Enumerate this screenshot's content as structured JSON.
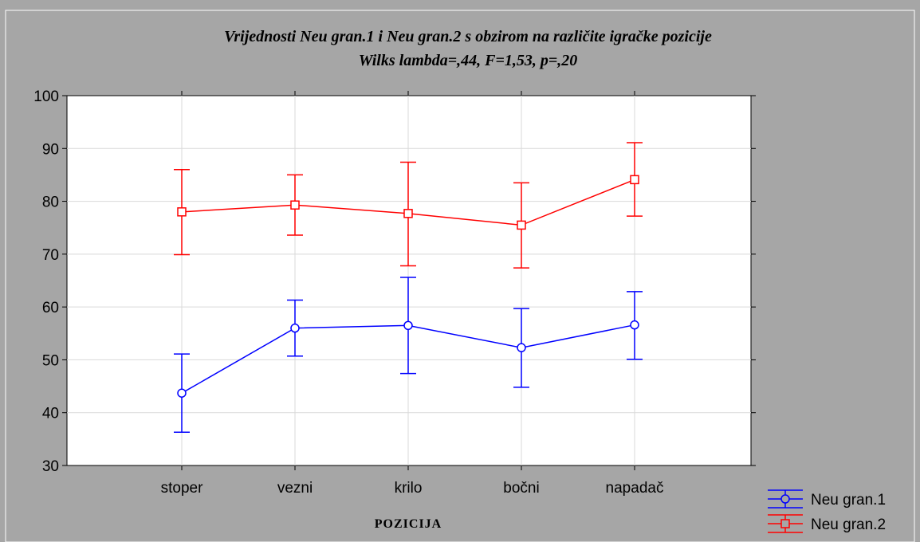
{
  "chart_data": {
    "type": "line",
    "title": "Vrijednosti Neu gran.1 i Neu gran.2 s obzirom na različite igračke pozicije",
    "subtitle": "Wilks lambda=,44, F=1,53, p=,20",
    "xlabel": "POZICIJA",
    "ylabel": "",
    "categories": [
      "stoper",
      "vezni",
      "krilo",
      "bočni",
      "napadač"
    ],
    "ylim": [
      30,
      100
    ],
    "yticks": [
      "30",
      "40",
      "50",
      "60",
      "70",
      "80",
      "90",
      "100"
    ],
    "grid": true,
    "legend_position": "bottom-right",
    "series": [
      {
        "name": "Neu gran.1",
        "color": "#0000ff",
        "marker": "circle",
        "values": [
          43.7,
          56.0,
          56.5,
          52.3,
          56.6
        ],
        "lower": [
          36.3,
          50.7,
          47.4,
          44.8,
          50.1
        ],
        "upper": [
          51.1,
          61.3,
          65.6,
          59.7,
          62.9
        ]
      },
      {
        "name": "Neu gran.2",
        "color": "#ff0000",
        "marker": "square",
        "values": [
          78.0,
          79.3,
          77.7,
          75.5,
          84.1
        ],
        "lower": [
          69.9,
          73.6,
          67.8,
          67.4,
          77.2
        ],
        "upper": [
          86.0,
          85.0,
          87.4,
          83.5,
          91.1
        ]
      }
    ],
    "colors": {
      "background": "#a6a6a6",
      "plot_area": "#ffffff",
      "grid": "#d9d9d9"
    }
  }
}
